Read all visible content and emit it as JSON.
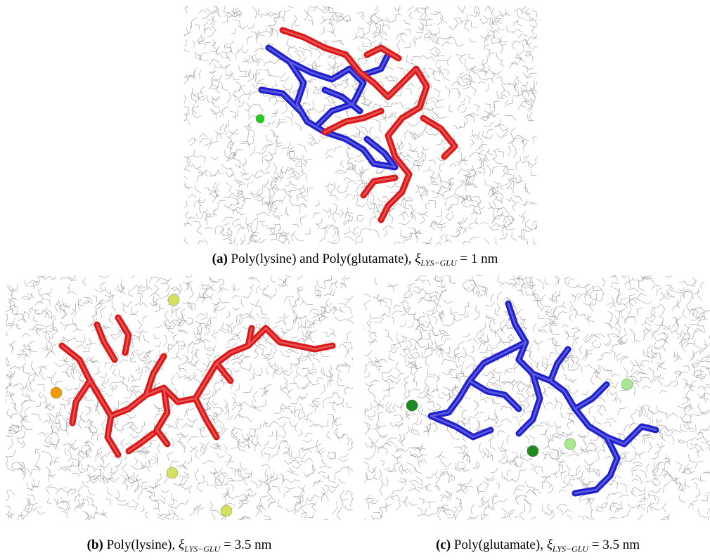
{
  "figure": {
    "panels": [
      {
        "id": "a",
        "caption_label": "(a)",
        "caption_prefix": "Poly(lysine) and Poly(glutamate),",
        "xi_symbol": "ξ",
        "xi_subscript": "LYS−GLU",
        "caption_value": "= 1 nm",
        "molecules": [
          "poly-lysine",
          "poly-glutamate"
        ],
        "molecule_colors": {
          "poly-lysine": "#2020d0",
          "poly-glutamate": "#dd1818"
        },
        "ions": [
          {
            "color": "#22cc22"
          }
        ]
      },
      {
        "id": "b",
        "caption_label": "(b)",
        "caption_prefix": "Poly(lysine),",
        "xi_symbol": "ξ",
        "xi_subscript": "LYS−GLU",
        "caption_value": "= 3.5 nm",
        "molecules": [
          "poly-lysine"
        ],
        "molecule_colors": {
          "poly-lysine": "#dd1818"
        },
        "ions": [
          {
            "color": "#d4e060"
          },
          {
            "color": "#f09a10"
          },
          {
            "color": "#d4e060"
          },
          {
            "color": "#d4e060"
          }
        ]
      },
      {
        "id": "c",
        "caption_label": "(c)",
        "caption_prefix": "Poly(glutamate),",
        "xi_symbol": "ξ",
        "xi_subscript": "LYS−GLU",
        "caption_value": "= 3.5 nm",
        "molecules": [
          "poly-glutamate"
        ],
        "molecule_colors": {
          "poly-glutamate": "#2020d0"
        },
        "ions": [
          {
            "color": "#1f8a1f"
          },
          {
            "color": "#a8e890"
          },
          {
            "color": "#a8e890"
          },
          {
            "color": "#1f8a1f"
          }
        ]
      }
    ],
    "water_color": "#9a9a9a"
  }
}
